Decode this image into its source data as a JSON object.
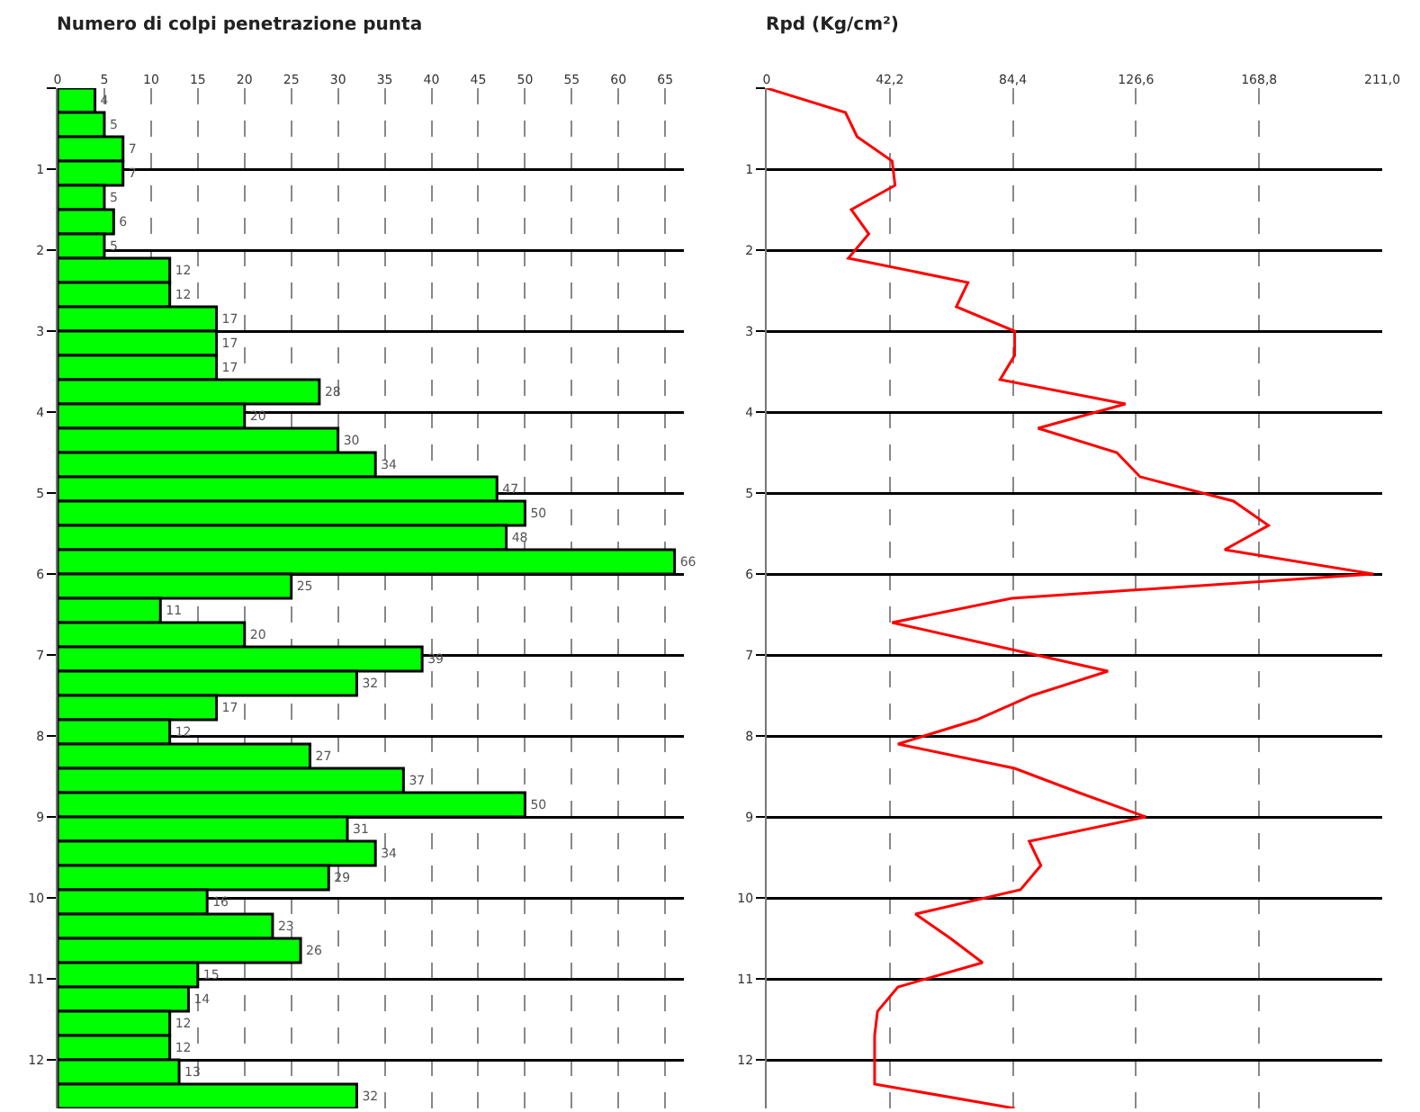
{
  "chart_data": [
    {
      "type": "bar",
      "title": "Numero di colpi penetrazione punta",
      "orientation": "horizontal",
      "color": "#00ff00",
      "data_labels": true,
      "grid": true,
      "x": [
        0.15,
        0.45,
        0.75,
        1.05,
        1.35,
        1.65,
        1.95,
        2.25,
        2.55,
        2.85,
        3.15,
        3.45,
        3.75,
        4.05,
        4.35,
        4.65,
        4.95,
        5.25,
        5.55,
        5.85,
        6.15,
        6.45,
        6.75,
        7.05,
        7.35,
        7.65,
        7.95,
        8.25,
        8.55,
        8.85,
        9.15,
        9.45,
        9.75,
        10.05,
        10.35,
        10.65,
        10.95,
        11.25,
        11.55,
        11.85,
        12.15,
        12.45
      ],
      "values": [
        4,
        5,
        7,
        7,
        5,
        6,
        5,
        12,
        12,
        17,
        17,
        17,
        28,
        20,
        30,
        34,
        47,
        50,
        48,
        66,
        25,
        11,
        20,
        39,
        32,
        17,
        12,
        27,
        37,
        50,
        31,
        34,
        29,
        16,
        23,
        26,
        15,
        14,
        12,
        12,
        13,
        32
      ],
      "xlim": [
        0,
        67
      ],
      "xticks": [
        0,
        5,
        10,
        15,
        20,
        25,
        30,
        35,
        40,
        45,
        50,
        55,
        60,
        65
      ],
      "ylim": [
        12.6,
        0
      ],
      "yticks": [
        {
          "value": 0,
          "label": null
        },
        1,
        2,
        3,
        4,
        5,
        6,
        7,
        8,
        9,
        10,
        11,
        12
      ]
    },
    {
      "type": "line",
      "title": "Rpd (Kg/cm²)",
      "orientation": "horizontal",
      "color": "#ff0000",
      "grid": true,
      "x": [
        0,
        0.3,
        0.6,
        0.9,
        1.2,
        1.5,
        1.8,
        2.1,
        2.4,
        2.7,
        3.0,
        3.3,
        3.6,
        3.9,
        4.2,
        4.5,
        4.8,
        5.1,
        5.4,
        5.7,
        6.0,
        6.3,
        6.6,
        6.9,
        7.2,
        7.5,
        7.8,
        8.1,
        8.4,
        8.7,
        9.0,
        9.3,
        9.6,
        9.9,
        10.2,
        10.5,
        10.8,
        11.1,
        11.4,
        11.7,
        12.0,
        12.3,
        12.6
      ],
      "values": [
        0,
        27,
        31,
        43,
        44,
        29,
        35,
        28,
        69,
        65,
        85,
        85,
        80,
        123,
        93,
        120,
        128,
        160,
        172,
        157,
        208,
        84,
        43,
        80,
        117,
        91,
        72,
        45,
        85,
        107,
        130,
        90,
        94,
        87,
        51,
        63,
        74,
        45,
        38,
        37,
        37,
        37,
        85
      ],
      "xlim": [
        0,
        211
      ],
      "xticks": [
        0,
        {
          "value": 42.2,
          "label": "42,2"
        },
        {
          "value": 84.4,
          "label": "84,4"
        },
        {
          "value": 126.6,
          "label": "126,6"
        },
        {
          "value": 168.8,
          "label": "168,8"
        },
        {
          "value": 211,
          "label": "211,0"
        }
      ],
      "ylim": [
        12.6,
        0
      ],
      "yticks": [
        {
          "value": 0,
          "label": null
        },
        1,
        2,
        3,
        4,
        5,
        6,
        7,
        8,
        9,
        10,
        11,
        12
      ]
    }
  ]
}
